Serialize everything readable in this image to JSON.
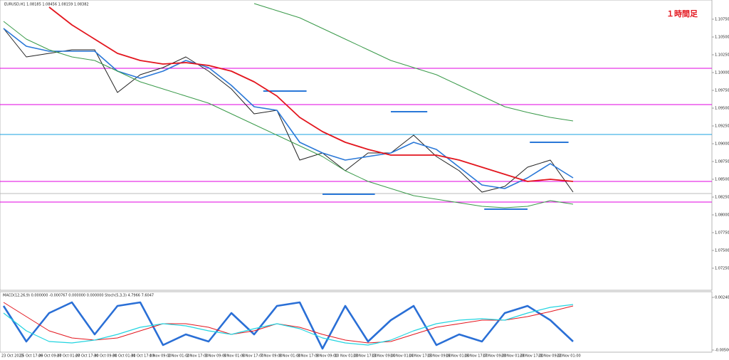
{
  "chart_data": [
    {
      "type": "line",
      "title": "EURUSD,H1 1.08185 1.08456 1.08159 1.08382",
      "annotation": "１時間足",
      "ylim": [
        1.0704,
        1.11
      ],
      "yticks": [
        {
          "value": 1.0725,
          "label": "1.07250"
        },
        {
          "value": 1.075,
          "label": "1.07500"
        },
        {
          "value": 1.0775,
          "label": "1.07750"
        },
        {
          "value": 1.08,
          "label": "1.08000"
        },
        {
          "value": 1.0825,
          "label": "1.08250"
        },
        {
          "value": 1.085,
          "label": "1.08500"
        },
        {
          "value": 1.0875,
          "label": "1.08750"
        },
        {
          "value": 1.09,
          "label": "1.09000"
        },
        {
          "value": 1.0925,
          "label": "1.09250"
        },
        {
          "value": 1.095,
          "label": "1.09500"
        },
        {
          "value": 1.0975,
          "label": "1.09750"
        },
        {
          "value": 1.1,
          "label": "1.10000"
        },
        {
          "value": 1.1025,
          "label": "1.10250"
        },
        {
          "value": 1.105,
          "label": "1.10500"
        },
        {
          "value": 1.1075,
          "label": "1.10750"
        }
      ],
      "series": [
        {
          "color": "#222222",
          "width": 1,
          "values": [
            1.1062,
            1.1022,
            1.1027,
            1.1032,
            1.1032,
            1.0972,
            1.0997,
            1.1007,
            1.1022,
            1.1002,
            1.0977,
            1.0942,
            1.0947,
            1.0877,
            1.0887,
            1.0862,
            1.0887,
            1.0887,
            1.0912,
            1.0882,
            1.0862,
            1.0832,
            1.084,
            1.0867,
            1.0877,
            1.0832
          ]
        },
        {
          "color": "#2a78d8",
          "width": 1.6,
          "values": [
            1.1062,
            1.1037,
            1.103,
            1.103,
            1.103,
            1.1002,
            1.0992,
            1.1002,
            1.1017,
            1.1007,
            1.0982,
            1.0952,
            1.0947,
            1.0902,
            1.0887,
            1.0877,
            1.0882,
            1.0887,
            1.0902,
            1.0892,
            1.0867,
            1.0842,
            1.0837,
            1.0852,
            1.0872,
            1.0852
          ]
        },
        {
          "color": "#e3161e",
          "width": 1.8,
          "values": [
            null,
            null,
            1.1092,
            1.1067,
            1.1047,
            1.1027,
            1.1017,
            1.1012,
            1.1014,
            1.101,
            1.1002,
            1.0987,
            1.0967,
            1.0937,
            1.0917,
            1.0902,
            1.0892,
            1.0884,
            1.0884,
            1.0884,
            1.0877,
            1.0867,
            1.0857,
            1.0847,
            1.085,
            1.0847
          ]
        },
        {
          "color": "#3a9a4a",
          "width": 1,
          "values": [
            1.1072,
            1.1047,
            1.1032,
            1.1022,
            1.1017,
            1.1002,
            1.0987,
            1.0977,
            1.0967,
            1.0957,
            1.0942,
            1.0927,
            1.0912,
            1.0897,
            1.0882,
            1.0862,
            1.0847,
            1.0837,
            1.0827,
            1.0822,
            1.0817,
            1.0812,
            1.081,
            1.0812,
            1.082,
            1.0815
          ]
        },
        {
          "color": "#3a9a4a",
          "width": 1,
          "values": [
            null,
            null,
            null,
            null,
            null,
            null,
            null,
            null,
            null,
            null,
            null,
            1.1097,
            1.1087,
            1.1077,
            1.1062,
            1.1047,
            1.1032,
            1.1017,
            1.1007,
            1.0997,
            1.0982,
            1.0967,
            1.0952,
            1.0944,
            1.0937,
            1.0932
          ]
        }
      ],
      "hlines": [
        {
          "value": 1.1006,
          "color": "#e000e0"
        },
        {
          "value": 1.0955,
          "color": "#e000e0"
        },
        {
          "value": 1.0913,
          "color": "#1aa0e0"
        },
        {
          "value": 1.0847,
          "color": "#e000e0"
        },
        {
          "value": 1.083,
          "color": "#bbbbbb"
        },
        {
          "value": 1.0818,
          "color": "#e000e0"
        }
      ],
      "segments": [
        {
          "value": 1.0974,
          "x": [
            11.4,
            13.3
          ],
          "color": "#2a78d8"
        },
        {
          "value": 1.0945,
          "x": [
            17,
            18.6
          ],
          "color": "#2a78d8"
        },
        {
          "value": 1.0829,
          "x": [
            14,
            16.3
          ],
          "color": "#2a78d8"
        },
        {
          "value": 1.0808,
          "x": [
            21.1,
            23
          ],
          "color": "#2a78d8"
        },
        {
          "value": 1.0902,
          "x": [
            23.1,
            24.8
          ],
          "color": "#2a78d8"
        }
      ]
    },
    {
      "type": "line",
      "title": "MACD(12,26,9) 0.000000 -0.000767 0.000000 0.000000 Stoch(5,3,3) 4.7966 7.6047",
      "ylim": [
        -0.005,
        0.0024
      ],
      "yticks": [
        {
          "value": 0.0024,
          "label": "0.002400"
        },
        {
          "value": -0.005,
          "label": "-0.005000"
        }
      ],
      "series": [
        {
          "color": "#2a6fd6",
          "width": 2.6,
          "values": [
            0.0012,
            -0.0038,
            0.0002,
            0.0017,
            -0.0028,
            0.0012,
            0.0017,
            -0.0043,
            -0.0028,
            -0.0038,
            0.0002,
            -0.0028,
            0.0012,
            0.0017,
            -0.0048,
            0.0012,
            -0.0038,
            -0.0008,
            0.0012,
            -0.0043,
            -0.0028,
            -0.0038,
            0.0002,
            0.0012,
            -0.0008,
            -0.0038
          ]
        },
        {
          "color": "#e3161e",
          "width": 1,
          "values": [
            0.0017,
            -0.0003,
            -0.0023,
            -0.0033,
            -0.0036,
            -0.0033,
            -0.0023,
            -0.0013,
            -0.0013,
            -0.0018,
            -0.0028,
            -0.0023,
            -0.0013,
            -0.0018,
            -0.0028,
            -0.0036,
            -0.004,
            -0.0038,
            -0.0028,
            -0.0018,
            -0.0013,
            -0.0008,
            -0.0008,
            -0.0003,
            0.0004,
            0.0012
          ]
        },
        {
          "color": "#22d4e0",
          "width": 1.2,
          "values": [
            0.0002,
            -0.0023,
            -0.0038,
            -0.004,
            -0.0036,
            -0.0028,
            -0.0018,
            -0.0013,
            -0.0016,
            -0.0023,
            -0.0028,
            -0.002,
            -0.0013,
            -0.002,
            -0.0033,
            -0.004,
            -0.0043,
            -0.0036,
            -0.0023,
            -0.0013,
            -0.0008,
            -0.0006,
            -0.0008,
            0.0002,
            0.001,
            0.0014
          ]
        }
      ],
      "xtick_labels": [
        "23 Oct 2023",
        "25 Oct 17:00",
        "26 Oct 09:00",
        "27 Oct 01:00",
        "27 Oct 17:00",
        "30 Oct 09:00",
        "31 Oct 01:00",
        "31 Oct 17:00",
        "1 Nov 09:00",
        "2 Nov 01:00",
        "2 Nov 17:00",
        "3 Nov 09:00",
        "6 Nov 01:00",
        "6 Nov 17:00",
        "7 Nov 09:00",
        "8 Nov 01:00",
        "8 Nov 17:00",
        "9 Nov 09:00",
        "10 Nov 01:00",
        "10 Nov 17:00",
        "13 Nov 09:00",
        "14 Nov 01:00",
        "14 Nov 17:00",
        "15 Nov 09:00",
        "16 Nov 01:00",
        "16 Nov 17:00",
        "17 Nov 09:00",
        "20 Nov 01:00",
        "20 Nov 17:00",
        "21 Nov 09:00",
        "22 Nov 01:00"
      ]
    }
  ]
}
